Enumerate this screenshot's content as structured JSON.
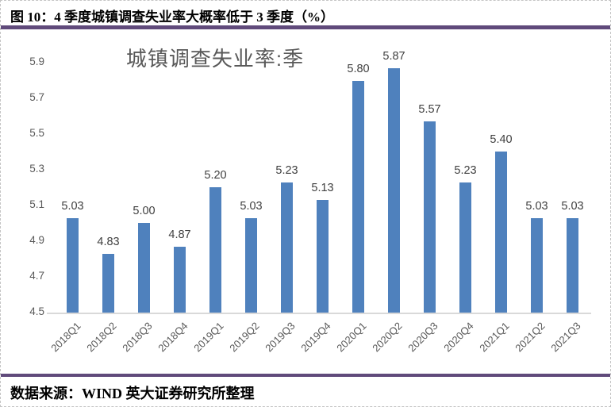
{
  "header": {
    "title": "图 10：4 季度城镇调查失业率大概率低于 3 季度（%）"
  },
  "footer": {
    "source": "数据来源：WIND  英大证券研究所整理"
  },
  "colors": {
    "bar": "#4F81BD",
    "accent_rule": "#604A7B",
    "axis_text": "#595959",
    "data_label_text": "#404040",
    "baseline": "#D9D9D9"
  },
  "chart_data": {
    "type": "bar",
    "title": "城镇调查失业率:季",
    "categories": [
      "2018Q1",
      "2018Q2",
      "2018Q3",
      "2018Q4",
      "2019Q1",
      "2019Q2",
      "2019Q3",
      "2019Q4",
      "2020Q1",
      "2020Q2",
      "2020Q3",
      "2020Q4",
      "2021Q1",
      "2021Q2",
      "2021Q3"
    ],
    "values": [
      5.03,
      4.83,
      5.0,
      4.87,
      5.2,
      5.03,
      5.23,
      5.13,
      5.8,
      5.87,
      5.57,
      5.23,
      5.4,
      5.03,
      5.03
    ],
    "data_labels": [
      "5.03",
      "4.83",
      "5.00",
      "4.87",
      "5.20",
      "5.03",
      "5.23",
      "5.13",
      "5.80",
      "5.87",
      "5.57",
      "5.23",
      "5.40",
      "5.03",
      "5.03"
    ],
    "xlabel": "",
    "ylabel": "",
    "ylim": [
      4.5,
      5.9
    ],
    "yticks": [
      5.9,
      5.7,
      5.5,
      5.3,
      5.1,
      4.9,
      4.7,
      4.5
    ],
    "grid": false,
    "legend": "none"
  }
}
